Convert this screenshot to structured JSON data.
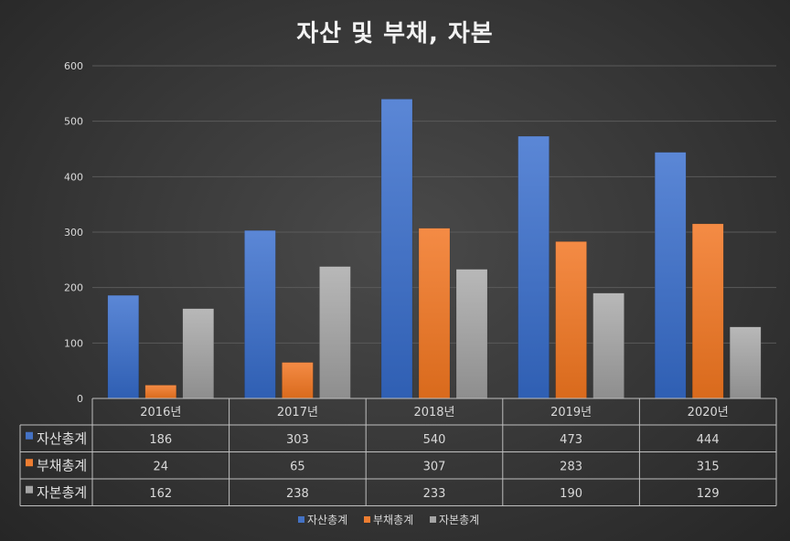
{
  "chart_data": {
    "type": "bar",
    "title": "자산 및 부채, 자본",
    "categories": [
      "2016년",
      "2017년",
      "2018년",
      "2019년",
      "2020년"
    ],
    "series": [
      {
        "name": "자산총계",
        "color": "#4472c4",
        "values": [
          186,
          303,
          540,
          473,
          444
        ]
      },
      {
        "name": "부채총계",
        "color": "#ed7d31",
        "values": [
          24,
          65,
          307,
          283,
          315
        ]
      },
      {
        "name": "자본총계",
        "color": "#a5a5a5",
        "values": [
          162,
          238,
          233,
          190,
          129
        ]
      }
    ],
    "ylim": [
      0,
      600
    ],
    "yticks": [
      0,
      100,
      200,
      300,
      400,
      500,
      600
    ],
    "grid": true,
    "data_table": true,
    "legend": "bottom-center"
  }
}
